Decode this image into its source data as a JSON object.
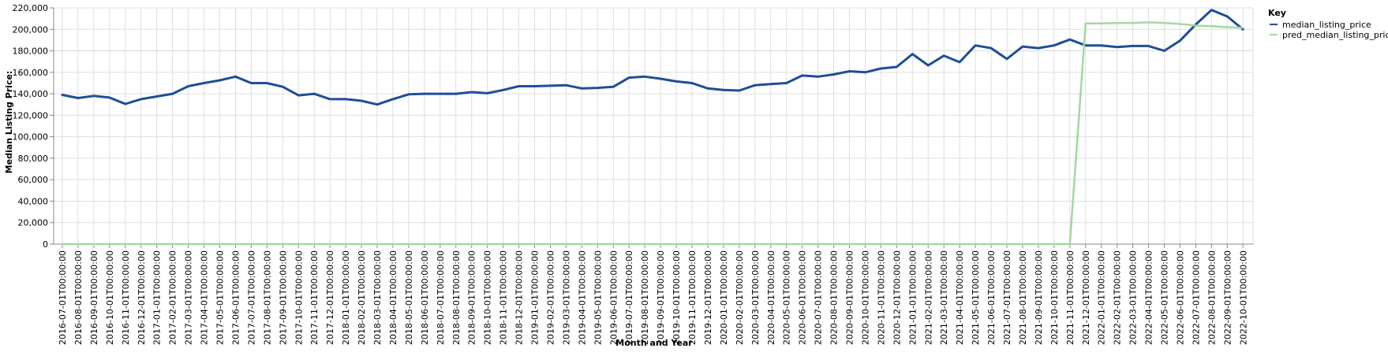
{
  "chart_data": {
    "type": "line",
    "xlabel": "Month and Year",
    "ylabel": "Median Listing Price:",
    "ylim": [
      0,
      220000
    ],
    "yticks": [
      0,
      20000,
      40000,
      60000,
      80000,
      100000,
      120000,
      140000,
      160000,
      180000,
      200000,
      220000
    ],
    "ytick_labels": [
      "0",
      "20,000",
      "40,000",
      "60,000",
      "80,000",
      "100,000",
      "120,000",
      "140,000",
      "160,000",
      "180,000",
      "200,000",
      "220,000"
    ],
    "grid": true,
    "legend": {
      "title": "Key",
      "placement": "right"
    },
    "categories": [
      "2016-07-01T00:00:00",
      "2016-08-01T00:00:00",
      "2016-09-01T00:00:00",
      "2016-10-01T00:00:00",
      "2016-11-01T00:00:00",
      "2016-12-01T00:00:00",
      "2017-01-01T00:00:00",
      "2017-02-01T00:00:00",
      "2017-03-01T00:00:00",
      "2017-04-01T00:00:00",
      "2017-05-01T00:00:00",
      "2017-06-01T00:00:00",
      "2017-07-01T00:00:00",
      "2017-08-01T00:00:00",
      "2017-09-01T00:00:00",
      "2017-10-01T00:00:00",
      "2017-11-01T00:00:00",
      "2017-12-01T00:00:00",
      "2018-01-01T00:00:00",
      "2018-02-01T00:00:00",
      "2018-03-01T00:00:00",
      "2018-04-01T00:00:00",
      "2018-05-01T00:00:00",
      "2018-06-01T00:00:00",
      "2018-07-01T00:00:00",
      "2018-08-01T00:00:00",
      "2018-09-01T00:00:00",
      "2018-10-01T00:00:00",
      "2018-11-01T00:00:00",
      "2018-12-01T00:00:00",
      "2019-01-01T00:00:00",
      "2019-02-01T00:00:00",
      "2019-03-01T00:00:00",
      "2019-04-01T00:00:00",
      "2019-05-01T00:00:00",
      "2019-06-01T00:00:00",
      "2019-07-01T00:00:00",
      "2019-08-01T00:00:00",
      "2019-09-01T00:00:00",
      "2019-10-01T00:00:00",
      "2019-11-01T00:00:00",
      "2019-12-01T00:00:00",
      "2020-01-01T00:00:00",
      "2020-02-01T00:00:00",
      "2020-03-01T00:00:00",
      "2020-04-01T00:00:00",
      "2020-05-01T00:00:00",
      "2020-06-01T00:00:00",
      "2020-07-01T00:00:00",
      "2020-08-01T00:00:00",
      "2020-09-01T00:00:00",
      "2020-10-01T00:00:00",
      "2020-11-01T00:00:00",
      "2020-12-01T00:00:00",
      "2021-01-01T00:00:00",
      "2021-02-01T00:00:00",
      "2021-03-01T00:00:00",
      "2021-04-01T00:00:00",
      "2021-05-01T00:00:00",
      "2021-06-01T00:00:00",
      "2021-07-01T00:00:00",
      "2021-08-01T00:00:00",
      "2021-09-01T00:00:00",
      "2021-10-01T00:00:00",
      "2021-11-01T00:00:00",
      "2021-12-01T00:00:00",
      "2022-01-01T00:00:00",
      "2022-02-01T00:00:00",
      "2022-03-01T00:00:00",
      "2022-04-01T00:00:00",
      "2022-05-01T00:00:00",
      "2022-06-01T00:00:00",
      "2022-07-01T00:00:00",
      "2022-08-01T00:00:00",
      "2022-09-01T00:00:00",
      "2022-10-01T00:00:00"
    ],
    "series": [
      {
        "name": "median_listing_price",
        "color": "#1f4e96",
        "values": [
          139000,
          136000,
          138000,
          136500,
          130500,
          135000,
          137500,
          140000,
          147000,
          150000,
          152500,
          156000,
          150000,
          150000,
          146500,
          138500,
          140000,
          135000,
          135000,
          133500,
          130000,
          135000,
          139500,
          140000,
          140000,
          140000,
          141500,
          140500,
          143500,
          147000,
          147000,
          147500,
          148000,
          145000,
          145500,
          146500,
          155000,
          156000,
          154000,
          151500,
          150000,
          145000,
          143500,
          143000,
          148000,
          149000,
          150000,
          157000,
          156000,
          158000,
          161000,
          160000,
          163500,
          165000,
          177000,
          166500,
          175500,
          169500,
          185000,
          182500,
          172500,
          184000,
          182500,
          185000,
          190500,
          185000,
          185000,
          183500,
          184500,
          184500,
          180000,
          189500,
          204500,
          218000,
          212000,
          200000
        ]
      },
      {
        "name": "pred_median_listing_price",
        "color": "#a1d99b",
        "values": [
          0,
          0,
          0,
          0,
          0,
          0,
          0,
          0,
          0,
          0,
          0,
          0,
          0,
          0,
          0,
          0,
          0,
          0,
          0,
          0,
          0,
          0,
          0,
          0,
          0,
          0,
          0,
          0,
          0,
          0,
          0,
          0,
          0,
          0,
          0,
          0,
          0,
          0,
          0,
          0,
          0,
          0,
          0,
          0,
          0,
          0,
          0,
          0,
          0,
          0,
          0,
          0,
          0,
          0,
          0,
          0,
          0,
          0,
          0,
          0,
          0,
          0,
          0,
          0,
          0,
          205500,
          205500,
          206000,
          206000,
          206500,
          206000,
          205000,
          203500,
          203000,
          202000,
          201500
        ]
      }
    ]
  }
}
